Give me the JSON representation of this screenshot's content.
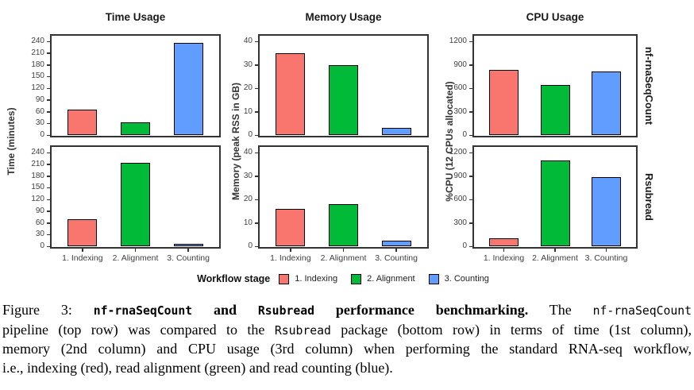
{
  "figure": {
    "column_titles": [
      "Time Usage",
      "Memory Usage",
      "CPU Usage"
    ],
    "row_labels": [
      "nf-rnaSeqCount",
      "Rsubread"
    ],
    "y_axis_titles": [
      "Time (minutes)",
      "Memory (peak RSS in GB)",
      "%CPU (12 CPUs allocated)"
    ],
    "x_categories": [
      "1. Indexing",
      "2. Alignment",
      "3. Counting"
    ],
    "legend": {
      "title": "Workflow stage",
      "items": [
        {
          "label": "1. Indexing",
          "color": "#F8766D"
        },
        {
          "label": "2. Alignment",
          "color": "#00BA38"
        },
        {
          "label": "3. Counting",
          "color": "#619CFF"
        }
      ]
    }
  },
  "chart_data": {
    "type": "bar",
    "layout": "2 rows (pipelines) x 3 columns (metrics) of single-series bar panels; shared x categories; legend at bottom; grid off",
    "categories": [
      "1. Indexing",
      "2. Alignment",
      "3. Counting"
    ],
    "series_colors": [
      "#F8766D",
      "#00BA38",
      "#619CFF"
    ],
    "columns": [
      {
        "title": "Time Usage",
        "ylabel": "Time (minutes)",
        "ylim": [
          0,
          240
        ],
        "ytick_step": 30
      },
      {
        "title": "Memory Usage",
        "ylabel": "Memory (peak RSS in GB)",
        "ylim": [
          0,
          40
        ],
        "ytick_step": 10
      },
      {
        "title": "CPU Usage",
        "ylabel": "%CPU (12 CPUs allocated)",
        "ylim": [
          0,
          1200
        ],
        "ytick_step": 300
      }
    ],
    "rows": [
      "nf-rnaSeqCount",
      "Rsubread"
    ],
    "panels": [
      {
        "row": "nf-rnaSeqCount",
        "column": "Time Usage",
        "values": [
          66,
          32,
          236
        ]
      },
      {
        "row": "nf-rnaSeqCount",
        "column": "Memory Usage",
        "values": [
          35,
          30,
          3
        ]
      },
      {
        "row": "nf-rnaSeqCount",
        "column": "CPU Usage",
        "values": [
          830,
          645,
          810
        ]
      },
      {
        "row": "Rsubread",
        "column": "Time Usage",
        "values": [
          70,
          213,
          6
        ]
      },
      {
        "row": "Rsubread",
        "column": "Memory Usage",
        "values": [
          16,
          18,
          2.5
        ]
      },
      {
        "row": "Rsubread",
        "column": "CPU Usage",
        "values": [
          100,
          1095,
          880
        ]
      }
    ]
  },
  "caption": {
    "lines": [
      {
        "justify": true,
        "runs": [
          {
            "t": "Figure 3: ",
            "s": "serif"
          },
          {
            "t": "nf-rnaSeqCount",
            "s": "mono-bold"
          },
          {
            "t": " and ",
            "s": "serif-bold"
          },
          {
            "t": "Rsubread",
            "s": "mono-bold"
          },
          {
            "t": " performance benchmarking.",
            "s": "serif-bold"
          },
          {
            "t": " The ",
            "s": "serif"
          },
          {
            "t": "nf-rnaSeqCount",
            "s": "mono"
          }
        ]
      },
      {
        "justify": true,
        "runs": [
          {
            "t": "pipeline (top row) was compared to the ",
            "s": "serif"
          },
          {
            "t": "Rsubread",
            "s": "mono"
          },
          {
            "t": " package (bottom row) in terms of time (1st column),",
            "s": "serif"
          }
        ]
      },
      {
        "justify": true,
        "runs": [
          {
            "t": "memory (2nd column) and CPU usage (3rd column) when performing the standard RNA-seq workflow,",
            "s": "serif"
          }
        ]
      },
      {
        "justify": false,
        "runs": [
          {
            "t": "i.e., indexing (red), read alignment (green) and read counting (blue).",
            "s": "serif"
          }
        ]
      }
    ]
  }
}
